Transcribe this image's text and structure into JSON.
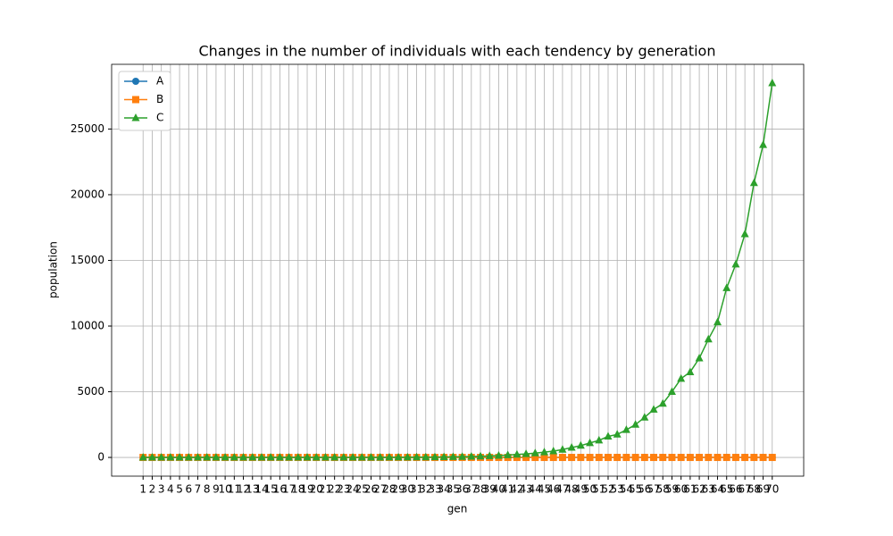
{
  "chart_data": {
    "type": "line",
    "title": "Changes in the number of individuals with each tendency by generation",
    "x_label": "gen",
    "y_label": "population",
    "x": [
      1,
      2,
      3,
      4,
      5,
      6,
      7,
      8,
      9,
      10,
      11,
      12,
      13,
      14,
      15,
      16,
      17,
      18,
      19,
      20,
      21,
      22,
      23,
      24,
      25,
      26,
      27,
      28,
      29,
      30,
      31,
      32,
      33,
      34,
      35,
      36,
      37,
      38,
      39,
      40,
      41,
      42,
      43,
      44,
      45,
      46,
      47,
      48,
      49,
      50,
      51,
      52,
      53,
      54,
      55,
      56,
      57,
      58,
      59,
      60,
      61,
      62,
      63,
      64,
      65,
      66,
      67,
      68,
      69,
      70
    ],
    "series": [
      {
        "name": "A",
        "color": "#1f77b4",
        "marker": "circle",
        "values": [
          0,
          0,
          0,
          0,
          0,
          0,
          0,
          0,
          0,
          0,
          0,
          0,
          0,
          0,
          0,
          0,
          0,
          0,
          0,
          0,
          0,
          0,
          0,
          0,
          0,
          0,
          0,
          0,
          0,
          0,
          0,
          0,
          0,
          0,
          0,
          0,
          0,
          0,
          0,
          0,
          0,
          0,
          0,
          0,
          0,
          0,
          0,
          0,
          0,
          0,
          0,
          0,
          0,
          0,
          0,
          0,
          0,
          0,
          0,
          0,
          0,
          0,
          0,
          0,
          0,
          0,
          0,
          0,
          0,
          0
        ]
      },
      {
        "name": "B",
        "color": "#ff7f0e",
        "marker": "square",
        "values": [
          0,
          0,
          0,
          0,
          0,
          0,
          0,
          0,
          0,
          0,
          0,
          0,
          0,
          0,
          0,
          0,
          0,
          0,
          0,
          0,
          0,
          0,
          0,
          0,
          0,
          0,
          0,
          0,
          0,
          0,
          0,
          0,
          0,
          0,
          0,
          0,
          0,
          0,
          0,
          0,
          0,
          0,
          0,
          0,
          0,
          0,
          0,
          0,
          0,
          0,
          0,
          0,
          0,
          0,
          0,
          0,
          0,
          0,
          0,
          0,
          0,
          0,
          0,
          0,
          0,
          0,
          0,
          0,
          0,
          0
        ]
      },
      {
        "name": "C",
        "color": "#2ca02c",
        "marker": "triangle",
        "values": [
          0,
          0,
          0,
          0,
          0,
          0,
          0,
          0,
          0,
          0,
          0,
          0,
          0,
          0,
          0,
          0,
          0,
          1,
          1,
          1,
          1,
          2,
          2,
          3,
          4,
          5,
          6,
          8,
          10,
          13,
          17,
          22,
          28,
          35,
          45,
          55,
          70,
          90,
          110,
          140,
          180,
          220,
          270,
          330,
          400,
          480,
          600,
          750,
          900,
          1100,
          1300,
          1600,
          1750,
          2100,
          2500,
          3050,
          3650,
          4100,
          5000,
          6000,
          6500,
          7550,
          9000,
          10300,
          12900,
          14700,
          17000,
          20900,
          23800,
          28500
        ]
      }
    ],
    "xlim": [
      -2.45,
      73.45
    ],
    "xticks": [
      1,
      2,
      3,
      4,
      5,
      6,
      7,
      8,
      9,
      10,
      11,
      12,
      13,
      14,
      15,
      16,
      17,
      18,
      19,
      20,
      21,
      22,
      23,
      24,
      25,
      26,
      27,
      28,
      29,
      30,
      31,
      32,
      33,
      34,
      35,
      36,
      37,
      38,
      39,
      40,
      41,
      42,
      43,
      44,
      45,
      46,
      47,
      48,
      49,
      50,
      51,
      52,
      53,
      54,
      55,
      56,
      57,
      58,
      59,
      60,
      61,
      62,
      63,
      64,
      65,
      66,
      67,
      68,
      69,
      70
    ],
    "ylim": [
      -1425,
      29925
    ],
    "yticks": [
      0,
      5000,
      10000,
      15000,
      20000,
      25000
    ],
    "grid": true,
    "legend": "upper-left"
  }
}
